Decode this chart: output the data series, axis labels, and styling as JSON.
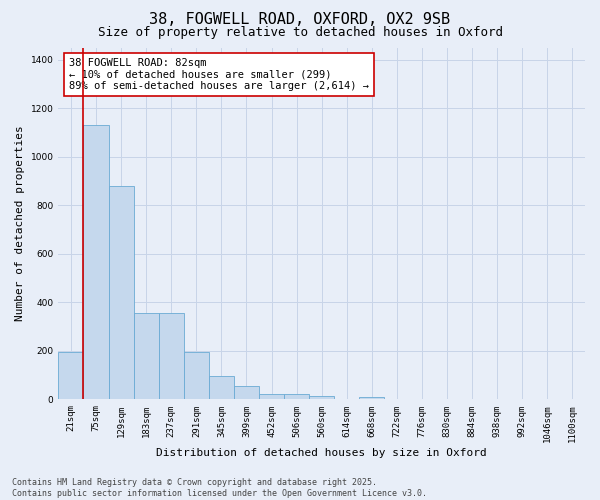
{
  "title_line1": "38, FOGWELL ROAD, OXFORD, OX2 9SB",
  "title_line2": "Size of property relative to detached houses in Oxford",
  "xlabel": "Distribution of detached houses by size in Oxford",
  "ylabel": "Number of detached properties",
  "bin_labels": [
    "21sqm",
    "75sqm",
    "129sqm",
    "183sqm",
    "237sqm",
    "291sqm",
    "345sqm",
    "399sqm",
    "452sqm",
    "506sqm",
    "560sqm",
    "614sqm",
    "668sqm",
    "722sqm",
    "776sqm",
    "830sqm",
    "884sqm",
    "938sqm",
    "992sqm",
    "1046sqm",
    "1100sqm"
  ],
  "bar_values": [
    195,
    1130,
    880,
    355,
    355,
    195,
    95,
    55,
    22,
    22,
    15,
    0,
    12,
    0,
    0,
    0,
    0,
    0,
    0,
    0,
    0
  ],
  "bar_color": "#c5d8ed",
  "bar_edge_color": "#6aaad4",
  "vline_color": "#cc0000",
  "annotation_text": "38 FOGWELL ROAD: 82sqm\n← 10% of detached houses are smaller (299)\n89% of semi-detached houses are larger (2,614) →",
  "annotation_box_color": "white",
  "annotation_box_edge_color": "#cc0000",
  "ylim": [
    0,
    1450
  ],
  "yticks": [
    0,
    200,
    400,
    600,
    800,
    1000,
    1200,
    1400
  ],
  "grid_color": "#c8d4e8",
  "background_color": "#e8eef8",
  "footer_line1": "Contains HM Land Registry data © Crown copyright and database right 2025.",
  "footer_line2": "Contains public sector information licensed under the Open Government Licence v3.0.",
  "title_fontsize": 11,
  "subtitle_fontsize": 9,
  "axis_label_fontsize": 8,
  "tick_fontsize": 6.5,
  "annotation_fontsize": 7.5,
  "footer_fontsize": 6
}
